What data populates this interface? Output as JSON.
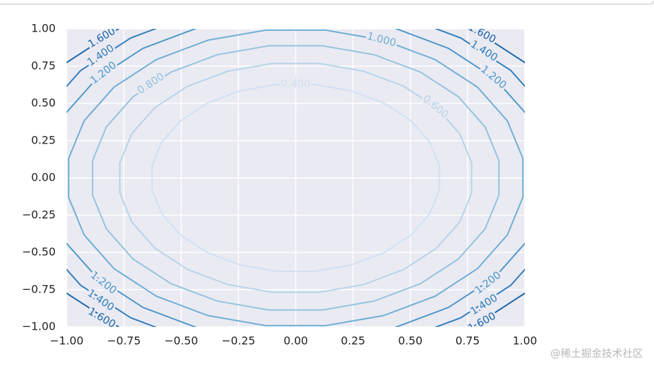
{
  "chart_data": {
    "type": "contour",
    "xlim": [
      -1,
      1
    ],
    "ylim": [
      -1,
      1
    ],
    "xticks": [
      {
        "value": -1,
        "label": "−1.00"
      },
      {
        "value": -0.75,
        "label": "−0.75"
      },
      {
        "value": -0.5,
        "label": "−0.50"
      },
      {
        "value": -0.25,
        "label": "−0.25"
      },
      {
        "value": 0,
        "label": "0.00"
      },
      {
        "value": 0.25,
        "label": "0.25"
      },
      {
        "value": 0.5,
        "label": "0.50"
      },
      {
        "value": 0.75,
        "label": "0.75"
      },
      {
        "value": 1,
        "label": "1.00"
      }
    ],
    "yticks": [
      {
        "value": -1,
        "label": "−1.00"
      },
      {
        "value": -0.75,
        "label": "−0.75"
      },
      {
        "value": -0.5,
        "label": "−0.50"
      },
      {
        "value": -0.25,
        "label": "−0.25"
      },
      {
        "value": 0,
        "label": "0.00"
      },
      {
        "value": 0.25,
        "label": "0.25"
      },
      {
        "value": 0.5,
        "label": "0.50"
      },
      {
        "value": 0.75,
        "label": "0.75"
      },
      {
        "value": 1,
        "label": "1.00"
      }
    ],
    "levels": [
      {
        "value": 0.4,
        "label": "0.400"
      },
      {
        "value": 0.6,
        "label": "0.600"
      },
      {
        "value": 0.8,
        "label": "0.800"
      },
      {
        "value": 1.0,
        "label": "1.000"
      },
      {
        "value": 1.2,
        "label": "1.200"
      },
      {
        "value": 1.4,
        "label": "1.400"
      },
      {
        "value": 1.6,
        "label": "1.600"
      }
    ],
    "colors": [
      "#cfe1f2",
      "#b5d4e9",
      "#93c3df",
      "#6daed5",
      "#4b97c9",
      "#2f7ebc",
      "#1864aa"
    ],
    "grid": true
  },
  "watermark": "@稀土掘金技术社区"
}
